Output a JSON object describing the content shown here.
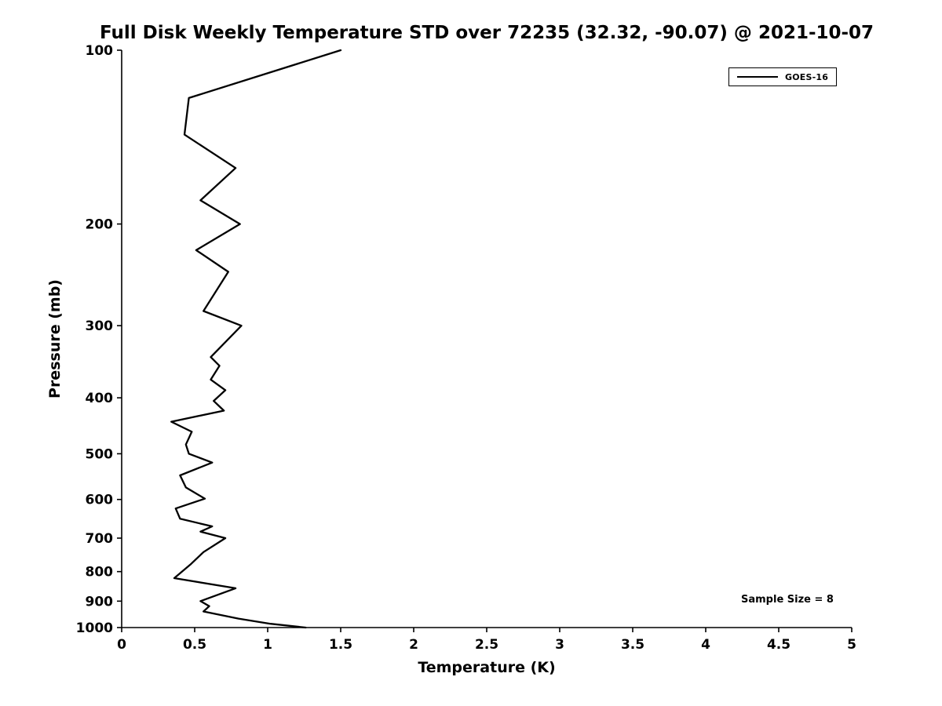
{
  "chart_data": {
    "type": "line",
    "title": "Full Disk Weekly Temperature STD over 72235 (32.32, -90.07) @ 2021-10-07",
    "xlabel": "Temperature (K)",
    "ylabel": "Pressure (mb)",
    "xlim": [
      0,
      5
    ],
    "ylim": [
      100,
      1000
    ],
    "yscale": "log",
    "y_inverted": true,
    "grid": false,
    "xtick_values": [
      0,
      0.5,
      1,
      1.5,
      2,
      2.5,
      3,
      3.5,
      4,
      4.5,
      5
    ],
    "xtick_labels": [
      "0",
      "0.5",
      "1",
      "1.5",
      "2",
      "2.5",
      "3",
      "3.5",
      "4",
      "4.5",
      "5"
    ],
    "ytick_values": [
      100,
      200,
      300,
      400,
      500,
      600,
      700,
      800,
      900,
      1000
    ],
    "ytick_labels": [
      "100",
      "200",
      "300",
      "400",
      "500",
      "600",
      "700",
      "800",
      "900",
      "1000"
    ],
    "legend": [
      {
        "label": "GOES-16",
        "color": "#000000"
      }
    ],
    "annotation": "Sample Size = 8",
    "series": [
      {
        "name": "GOES-16",
        "color": "#000000",
        "points": [
          [
            100,
            1.5
          ],
          [
            121,
            0.46
          ],
          [
            140,
            0.43
          ],
          [
            160,
            0.78
          ],
          [
            182,
            0.54
          ],
          [
            200,
            0.81
          ],
          [
            222,
            0.51
          ],
          [
            242,
            0.73
          ],
          [
            283,
            0.56
          ],
          [
            300,
            0.82
          ],
          [
            340,
            0.61
          ],
          [
            352,
            0.67
          ],
          [
            372,
            0.61
          ],
          [
            388,
            0.71
          ],
          [
            405,
            0.63
          ],
          [
            421,
            0.7
          ],
          [
            440,
            0.34
          ],
          [
            458,
            0.48
          ],
          [
            482,
            0.44
          ],
          [
            500,
            0.46
          ],
          [
            518,
            0.62
          ],
          [
            545,
            0.4
          ],
          [
            572,
            0.44
          ],
          [
            598,
            0.57
          ],
          [
            622,
            0.37
          ],
          [
            648,
            0.4
          ],
          [
            668,
            0.62
          ],
          [
            682,
            0.54
          ],
          [
            700,
            0.71
          ],
          [
            740,
            0.56
          ],
          [
            778,
            0.47
          ],
          [
            821,
            0.36
          ],
          [
            855,
            0.78
          ],
          [
            900,
            0.54
          ],
          [
            918,
            0.6
          ],
          [
            938,
            0.56
          ],
          [
            965,
            0.8
          ],
          [
            985,
            1.02
          ],
          [
            1000,
            1.26
          ]
        ]
      }
    ]
  }
}
